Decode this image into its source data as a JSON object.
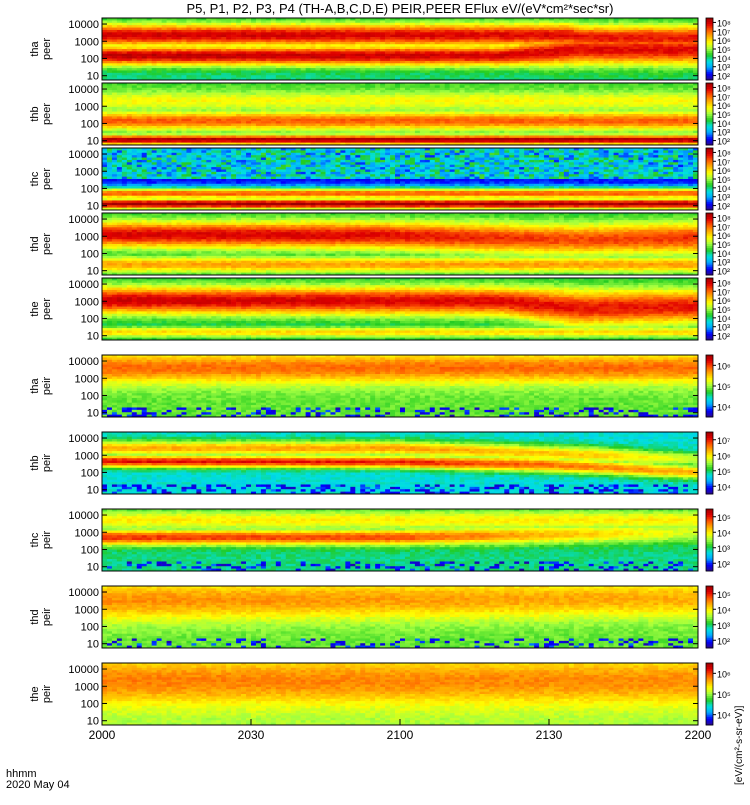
{
  "title": "P5, P1, P2, P3, P4 (TH-A,B,C,D,E) PEIR,PEER EFlux eV/(eV*cm²*sec*sr)",
  "colorbar_label": "[eV/(cm²-s-sr-eV)]",
  "bottom_labels": {
    "format": "hhmm",
    "date": "2020 May 04"
  },
  "chart_data": {
    "type": "heatmap",
    "title": "P5, P1, P2, P3, P4 (TH-A,B,C,D,E) PEIR,PEER EFlux eV/(eV*cm²*sec*sr)",
    "xlabel": "hhmm",
    "x_ticks": [
      "2000",
      "2030",
      "2100",
      "2130",
      "2200"
    ],
    "x_range_minutes": [
      0,
      120
    ],
    "y_scale": "log",
    "y_ticks": [
      "10",
      "100",
      "1000",
      "10000"
    ],
    "color_scale": "log",
    "colormap": [
      "#2a0a8a",
      "#0000ff",
      "#00aaff",
      "#00e0e0",
      "#22cc22",
      "#a0ff40",
      "#ffff00",
      "#ffb000",
      "#ff5a00",
      "#e00000",
      "#9a0000"
    ],
    "panels": [
      {
        "probe": "tha",
        "species": "peer",
        "labels": [
          "tha",
          "peer"
        ],
        "colorbar_ticks": [
          "10²",
          "10³",
          "10⁴",
          "10⁵",
          "10⁶",
          "10⁷",
          "10⁸"
        ],
        "bands": [
          {
            "t": [
              0,
              80,
              96,
              120
            ],
            "center": [
              2.15,
              2.15,
              2.5,
              2.5
            ],
            "width": [
              0.55,
              0.6,
              0.9,
              0.9
            ],
            "peak": [
              0.95,
              0.92,
              0.9,
              0.9
            ]
          },
          {
            "t": [
              0,
              95,
              96,
              120
            ],
            "center": [
              3.35,
              3.35,
              3.2,
              3.2
            ],
            "width": [
              0.65,
              0.7,
              0.75,
              0.75
            ],
            "peak": [
              0.93,
              0.9,
              0.88,
              0.88
            ]
          }
        ],
        "background": 0.35,
        "noise_low": 0.0
      },
      {
        "probe": "thb",
        "species": "peer",
        "labels": [
          "thb",
          "peer"
        ],
        "colorbar_ticks": [
          "10²",
          "10³",
          "10⁴",
          "10⁵",
          "10⁶",
          "10⁷",
          "10⁸"
        ],
        "bands": [
          {
            "t": [
              0,
              120
            ],
            "center": [
              1.05,
              1.05
            ],
            "width": [
              0.25,
              0.25
            ],
            "peak": [
              0.98,
              0.98
            ]
          },
          {
            "t": [
              0,
              120
            ],
            "center": [
              2.15,
              2.15
            ],
            "width": [
              0.5,
              0.5
            ],
            "peak": [
              0.8,
              0.8
            ]
          },
          {
            "t": [
              0,
              120
            ],
            "center": [
              3.3,
              3.3
            ],
            "width": [
              0.55,
              0.55
            ],
            "peak": [
              0.6,
              0.6
            ]
          }
        ],
        "background": 0.42,
        "noise_low": 0.0
      },
      {
        "probe": "thc",
        "species": "peer",
        "labels": [
          "thc",
          "peer"
        ],
        "colorbar_ticks": [
          "10²",
          "10³",
          "10⁴",
          "10⁵",
          "10⁶",
          "10⁷",
          "10⁸"
        ],
        "bands": [
          {
            "t": [
              0,
              120
            ],
            "center": [
              1.1,
              1.1
            ],
            "width": [
              0.35,
              0.35
            ],
            "peak": [
              0.98,
              0.98
            ]
          },
          {
            "t": [
              0,
              120
            ],
            "center": [
              1.7,
              1.7
            ],
            "width": [
              0.35,
              0.35
            ],
            "peak": [
              0.8,
              0.8
            ]
          }
        ],
        "background": 0.1,
        "noise_low": 0.0,
        "noise_high": 0.55
      },
      {
        "probe": "thd",
        "species": "peer",
        "labels": [
          "thd",
          "peer"
        ],
        "colorbar_ticks": [
          "10²",
          "10³",
          "10⁴",
          "10⁵",
          "10⁶",
          "10⁷",
          "10⁸"
        ],
        "bands": [
          {
            "t": [
              0,
              55,
              96,
              120
            ],
            "center": [
              3.1,
              3.05,
              2.8,
              2.9
            ],
            "width": [
              0.75,
              0.8,
              0.9,
              0.9
            ],
            "peak": [
              0.92,
              0.9,
              0.82,
              0.85
            ]
          },
          {
            "t": [
              0,
              120
            ],
            "center": [
              1.35,
              1.35
            ],
            "width": [
              0.45,
              0.45
            ],
            "peak": [
              0.72,
              0.72
            ]
          }
        ],
        "background": 0.38,
        "noise_low": 0.0
      },
      {
        "probe": "the",
        "species": "peer",
        "labels": [
          "the",
          "peer"
        ],
        "colorbar_ticks": [
          "10²",
          "10³",
          "10⁴",
          "10⁵",
          "10⁶",
          "10⁷",
          "10⁸"
        ],
        "bands": [
          {
            "t": [
              0,
              80,
              96,
              120
            ],
            "center": [
              3.05,
              3.0,
              2.6,
              2.7
            ],
            "width": [
              0.8,
              0.85,
              1.1,
              1.0
            ],
            "peak": [
              0.93,
              0.9,
              0.88,
              0.88
            ]
          },
          {
            "t": [
              0,
              120
            ],
            "center": [
              1.2,
              1.2
            ],
            "width": [
              0.3,
              0.3
            ],
            "peak": [
              0.65,
              0.65
            ]
          }
        ],
        "background": 0.36,
        "noise_low": 0.0
      },
      {
        "probe": "tha",
        "species": "peir",
        "labels": [
          "tha",
          "peir"
        ],
        "colorbar_ticks": [
          "10⁴",
          "10⁵",
          "10⁶"
        ],
        "bands": [
          {
            "t": [
              0,
              120
            ],
            "center": [
              3.6,
              3.6
            ],
            "width": [
              0.9,
              0.9
            ],
            "peak": [
              0.78,
              0.78
            ]
          }
        ],
        "background": 0.45,
        "noise_low": 0.3
      },
      {
        "probe": "thb",
        "species": "peir",
        "labels": [
          "thb",
          "peir"
        ],
        "colorbar_ticks": [
          "10⁴",
          "10⁵",
          "10⁶",
          "10⁷"
        ],
        "bands": [
          {
            "t": [
              0,
              60,
              90,
              120
            ],
            "center": [
              2.65,
              2.6,
              2.45,
              2.0
            ],
            "width": [
              0.35,
              0.35,
              0.45,
              0.4
            ],
            "peak": [
              0.9,
              0.88,
              0.78,
              0.7
            ]
          },
          {
            "t": [
              0,
              60,
              100,
              120
            ],
            "center": [
              3.4,
              3.4,
              3.0,
              2.75
            ],
            "width": [
              0.45,
              0.45,
              0.5,
              0.4
            ],
            "peak": [
              0.7,
              0.72,
              0.66,
              0.55
            ]
          }
        ],
        "background": 0.3,
        "noise_low": 0.35
      },
      {
        "probe": "thc",
        "species": "peir",
        "labels": [
          "thc",
          "peir"
        ],
        "colorbar_ticks": [
          "10²",
          "10³",
          "10⁴",
          "10⁵"
        ],
        "bands": [
          {
            "t": [
              0,
              60,
              100,
              120
            ],
            "center": [
              2.7,
              2.7,
              2.9,
              3.0
            ],
            "width": [
              0.45,
              0.45,
              0.55,
              0.6
            ],
            "peak": [
              0.85,
              0.82,
              0.65,
              0.55
            ]
          },
          {
            "t": [
              0,
              120
            ],
            "center": [
              3.7,
              3.7
            ],
            "width": [
              0.6,
              0.6
            ],
            "peak": [
              0.62,
              0.62
            ]
          }
        ],
        "background": 0.35,
        "noise_low": 0.25
      },
      {
        "probe": "thd",
        "species": "peir",
        "labels": [
          "thd",
          "peir"
        ],
        "colorbar_ticks": [
          "10²",
          "10³",
          "10⁴",
          "10⁵"
        ],
        "bands": [
          {
            "t": [
              0,
              120
            ],
            "center": [
              3.5,
              3.6
            ],
            "width": [
              1.2,
              1.1
            ],
            "peak": [
              0.74,
              0.7
            ]
          }
        ],
        "background": 0.45,
        "noise_low": 0.2
      },
      {
        "probe": "the",
        "species": "peir",
        "labels": [
          "the",
          "peir"
        ],
        "colorbar_ticks": [
          "10⁴",
          "10⁵",
          "10⁶"
        ],
        "bands": [
          {
            "t": [
              0,
              120
            ],
            "center": [
              3.3,
              3.3
            ],
            "width": [
              1.4,
              1.4
            ],
            "peak": [
              0.76,
              0.74
            ]
          }
        ],
        "background": 0.5,
        "noise_low": 0.0
      }
    ]
  }
}
